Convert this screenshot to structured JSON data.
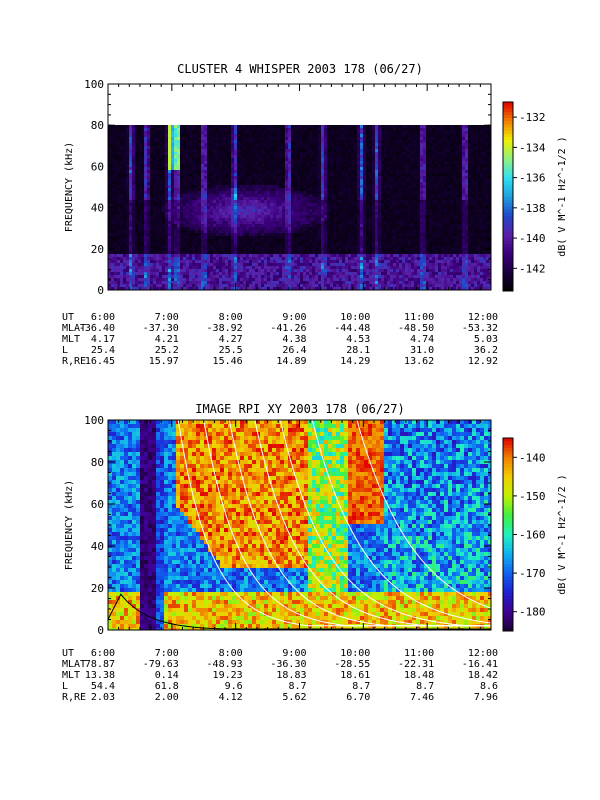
{
  "chart_data": [
    {
      "type": "heatmap",
      "title": "CLUSTER 4 WHISPER 2003 178 (06/27)",
      "ylabel": "FREQUENCY (kHz)",
      "ylim": [
        0,
        100
      ],
      "yticks": [
        "0",
        "20",
        "40",
        "60",
        "80",
        "100"
      ],
      "xticks": [
        "6:00",
        "7:00",
        "8:00",
        "9:00",
        "10:00",
        "11:00",
        "12:00"
      ],
      "xlim_hours": [
        6,
        12
      ],
      "data_top_khz": 80,
      "colorbar": {
        "label": "dB( V M^-1 Hz^-1/2 )",
        "ticks": [
          "-132",
          "-134",
          "-136",
          "-138",
          "-140",
          "-142"
        ],
        "range": [
          -143.5,
          -131.0
        ],
        "colors": [
          "#000000",
          "#1b0040",
          "#3a007a",
          "#5a20a8",
          "#2046c8",
          "#20a0e0",
          "#30e0f0",
          "#90f080",
          "#f0f000",
          "#f08000",
          "#e00000"
        ]
      },
      "ephemeris": {
        "labels": [
          "UT",
          "MLAT",
          "MLT",
          "L",
          "R,RE"
        ],
        "ut": [
          "6:00",
          "7:00",
          "8:00",
          "9:00",
          "10:00",
          "11:00",
          "12:00"
        ],
        "mlat": [
          "-36.40",
          "-37.30",
          "-38.92",
          "-41.26",
          "-44.48",
          "-48.50",
          "-53.32"
        ],
        "mlt": [
          "4.17",
          "4.21",
          "4.27",
          "4.38",
          "4.53",
          "4.74",
          "5.03"
        ],
        "l": [
          "25.4",
          "25.2",
          "25.5",
          "26.4",
          "28.1",
          "31.0",
          "36.2"
        ],
        "r_re": [
          "16.45",
          "15.97",
          "15.46",
          "14.89",
          "14.29",
          "13.62",
          "12.92"
        ]
      }
    },
    {
      "type": "heatmap",
      "title": "IMAGE RPI XY 2003 178 (06/27)",
      "ylabel": "FREQUENCY (kHz)",
      "ylim": [
        0,
        100
      ],
      "yticks": [
        "0",
        "20",
        "40",
        "60",
        "80",
        "100"
      ],
      "xticks": [
        "6:00",
        "7:00",
        "8:00",
        "9:00",
        "10:00",
        "11:00",
        "12:00"
      ],
      "xlim_hours": [
        6,
        12
      ],
      "colorbar": {
        "label": "dB( V M^-1 Hz^-1/2 )",
        "ticks": [
          "-140",
          "-150",
          "-160",
          "-170",
          "-180"
        ],
        "range": [
          -185,
          -135
        ],
        "colors": [
          "#1a0030",
          "#400090",
          "#2020d0",
          "#1060f0",
          "#10b0f0",
          "#20f0c0",
          "#40f040",
          "#c0f000",
          "#f0d000",
          "#f08000",
          "#e00000"
        ]
      },
      "ephemeris": {
        "labels": [
          "UT",
          "MLAT",
          "MLT",
          "L",
          "R,RE"
        ],
        "ut": [
          "6:00",
          "7:00",
          "8:00",
          "9:00",
          "10:00",
          "11:00",
          "12:00"
        ],
        "mlat": [
          "78.87",
          "-79.63",
          "-48.93",
          "-36.30",
          "-28.55",
          "-22.31",
          "-16.41"
        ],
        "mlt": [
          "13.38",
          "0.14",
          "19.23",
          "18.83",
          "18.61",
          "18.48",
          "18.42"
        ],
        "l": [
          "54.4",
          "61.8",
          "9.6",
          "8.7",
          "8.7",
          "8.7",
          "8.6"
        ],
        "r_re": [
          "2.03",
          "2.00",
          "4.12",
          "5.62",
          "6.70",
          "7.46",
          "7.96"
        ]
      }
    }
  ]
}
